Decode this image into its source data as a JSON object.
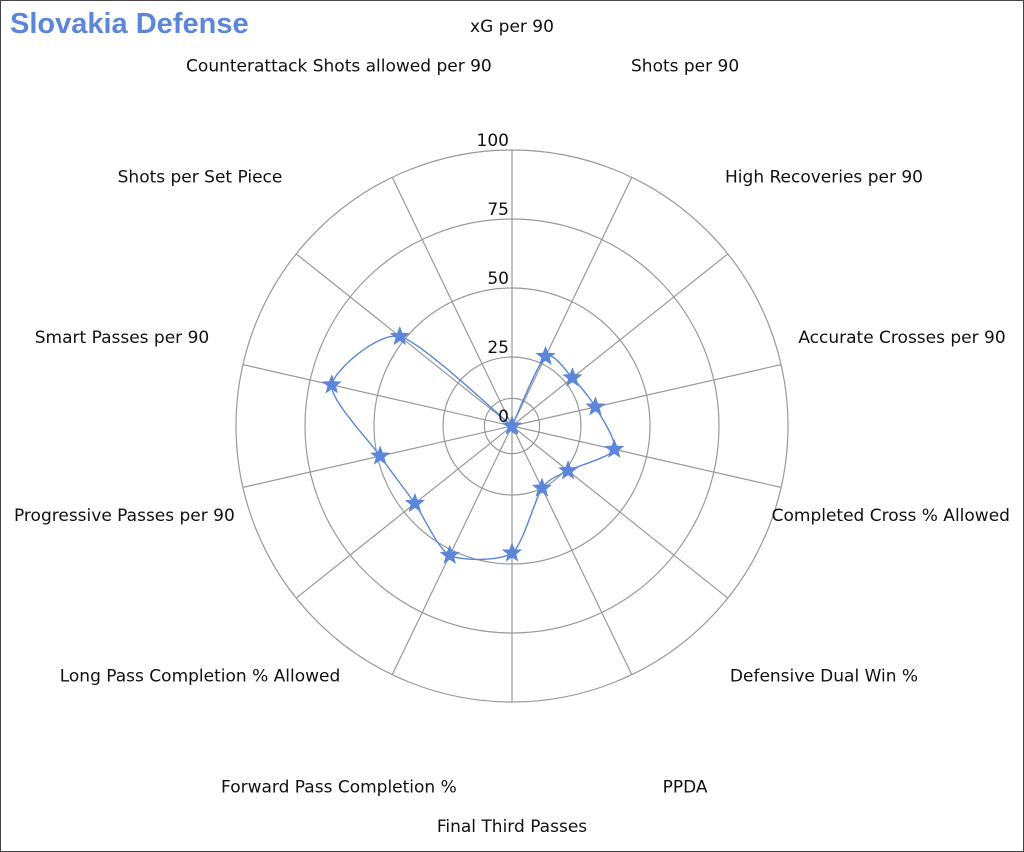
{
  "chart_data": {
    "type": "radar",
    "title": "Slovakia Defense",
    "rlim": [
      0,
      100
    ],
    "rticks": [
      "0",
      "25",
      "50",
      "75",
      "100"
    ],
    "rtick_values": [
      0,
      25,
      50,
      75,
      100
    ],
    "axes": [
      "xG per 90",
      "Shots per 90",
      "High Recoveries per 90",
      "Accurate Crosses per 90",
      "Completed Cross % Allowed",
      "Defensive Dual Win %",
      "PPDA",
      "Final Third Passes",
      "Forward Pass Completion %",
      "Long Pass Completion % Allowed",
      "Progressive Passes per 90",
      "Smart Passes per 90",
      "Shots per Set Piece",
      "Counterattack Shots allowed per 90"
    ],
    "series": [
      {
        "name": "Slovakia Defense",
        "values": [
          0,
          28,
          28,
          31,
          38,
          26,
          25,
          46,
          52,
          45,
          49,
          67,
          52,
          0
        ]
      }
    ],
    "colors": {
      "series": "#5b86d9",
      "grid": "#999999",
      "title": "#5b86d9"
    }
  }
}
